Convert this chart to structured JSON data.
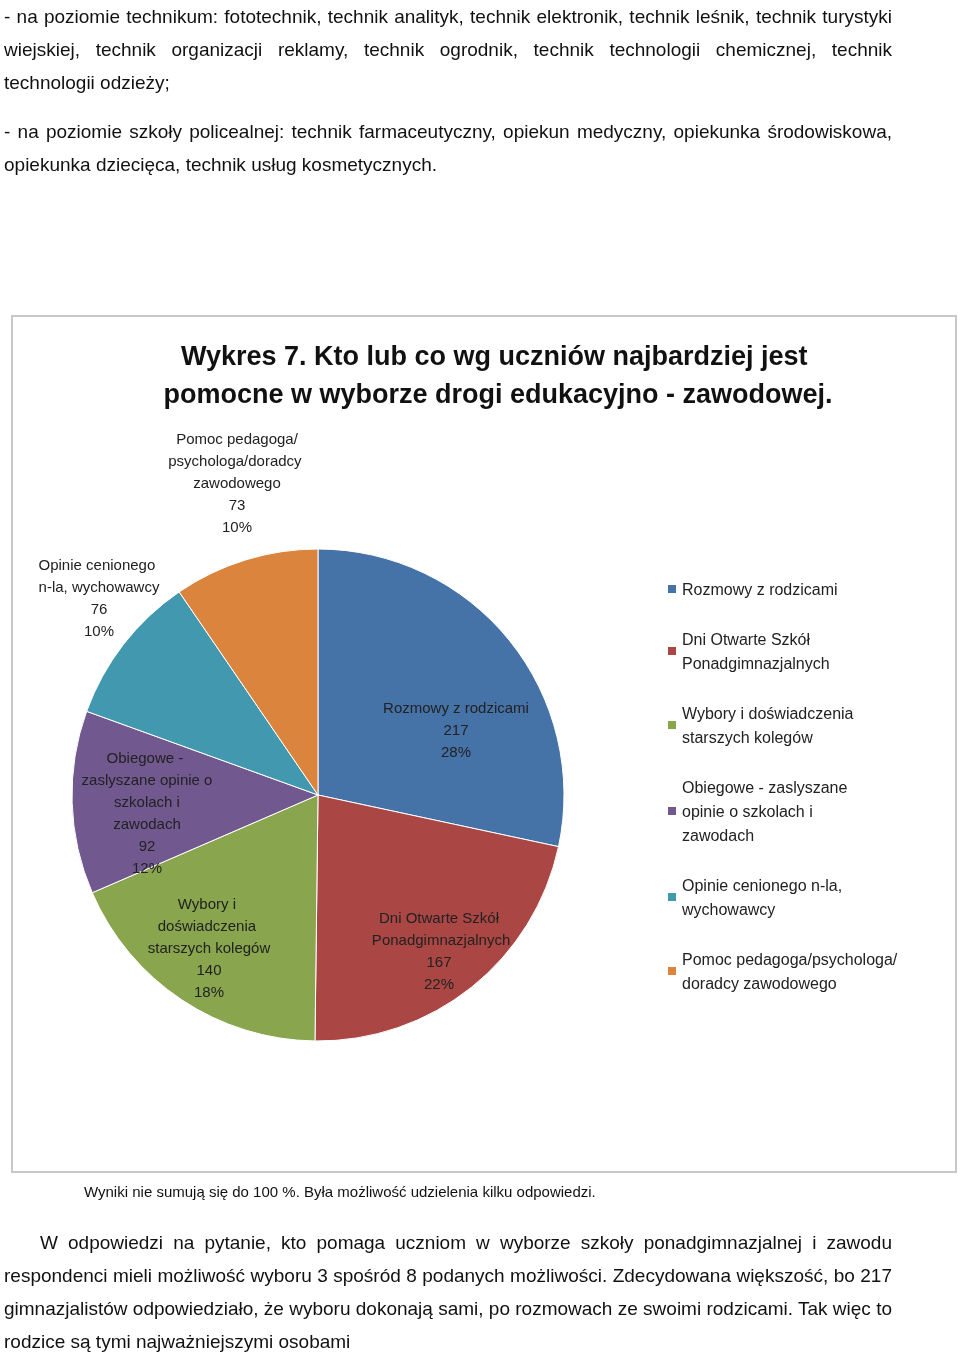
{
  "chart_data": {
    "type": "pie",
    "title": "Wykres 7. Kto lub co wg uczniów najbardziej jest pomocne w wyborze drogi edukacyjno - zawodowej.",
    "categories": [
      "Rozmowy z rodzicami",
      "Dni Otwarte Szkół Ponadgimnazjalnych",
      "Wybory i doświadczenia starszych kolegów",
      "Obiegowe - zaslyszane opinie o szkolach i zawodach",
      "Opinie cenionego n-la, wychowawcy",
      "Pomoc pedagoga/psychologa/doradcy zawodowego"
    ],
    "values": [
      217,
      167,
      140,
      92,
      76,
      73
    ],
    "value_labels": [
      "217\n28%",
      "167\n22%",
      "140\n18%",
      "92\n12%",
      "76\n10%",
      "73\n10%"
    ],
    "colors": [
      "#4572a7",
      "#aa4643",
      "#89a54e",
      "#71588f",
      "#4198af",
      "#db843d"
    ],
    "legend": "right",
    "annotations": [
      "- na poziomie technikum: fototechnik, technik analityk, technik elektronik, technik leśnik, technik turystyki wiejskiej, technik organizacji reklamy, technik ogrodnik, technik technologii chemicznej, technik technologii odzieży;",
      "- na poziomie szkoły policealnej: technik farmaceutyczny, opiekun medyczny, opiekunka środowiskowa, opiekunka dziecięca, technik usług kosmetycznych.",
      "Wyniki nie sumują się do 100 %. Była możliwość udzielenia kilku odpowiedzi.",
      "W odpowiedzi na pytanie, kto pomaga uczniom w wyborze szkoły ponadgimnazjalnej i zawodu respondenci mieli możliwość wyboru 3 spośród 8 podanych możliwości. Zdecydowana większość, bo 217 gimnazjalistów odpowiedziało, że wyboru dokonają sami, po rozmowach ze swoimi rodzicami. Tak więc to rodzice są tymi najważniejszymi osobami"
    ]
  }
}
